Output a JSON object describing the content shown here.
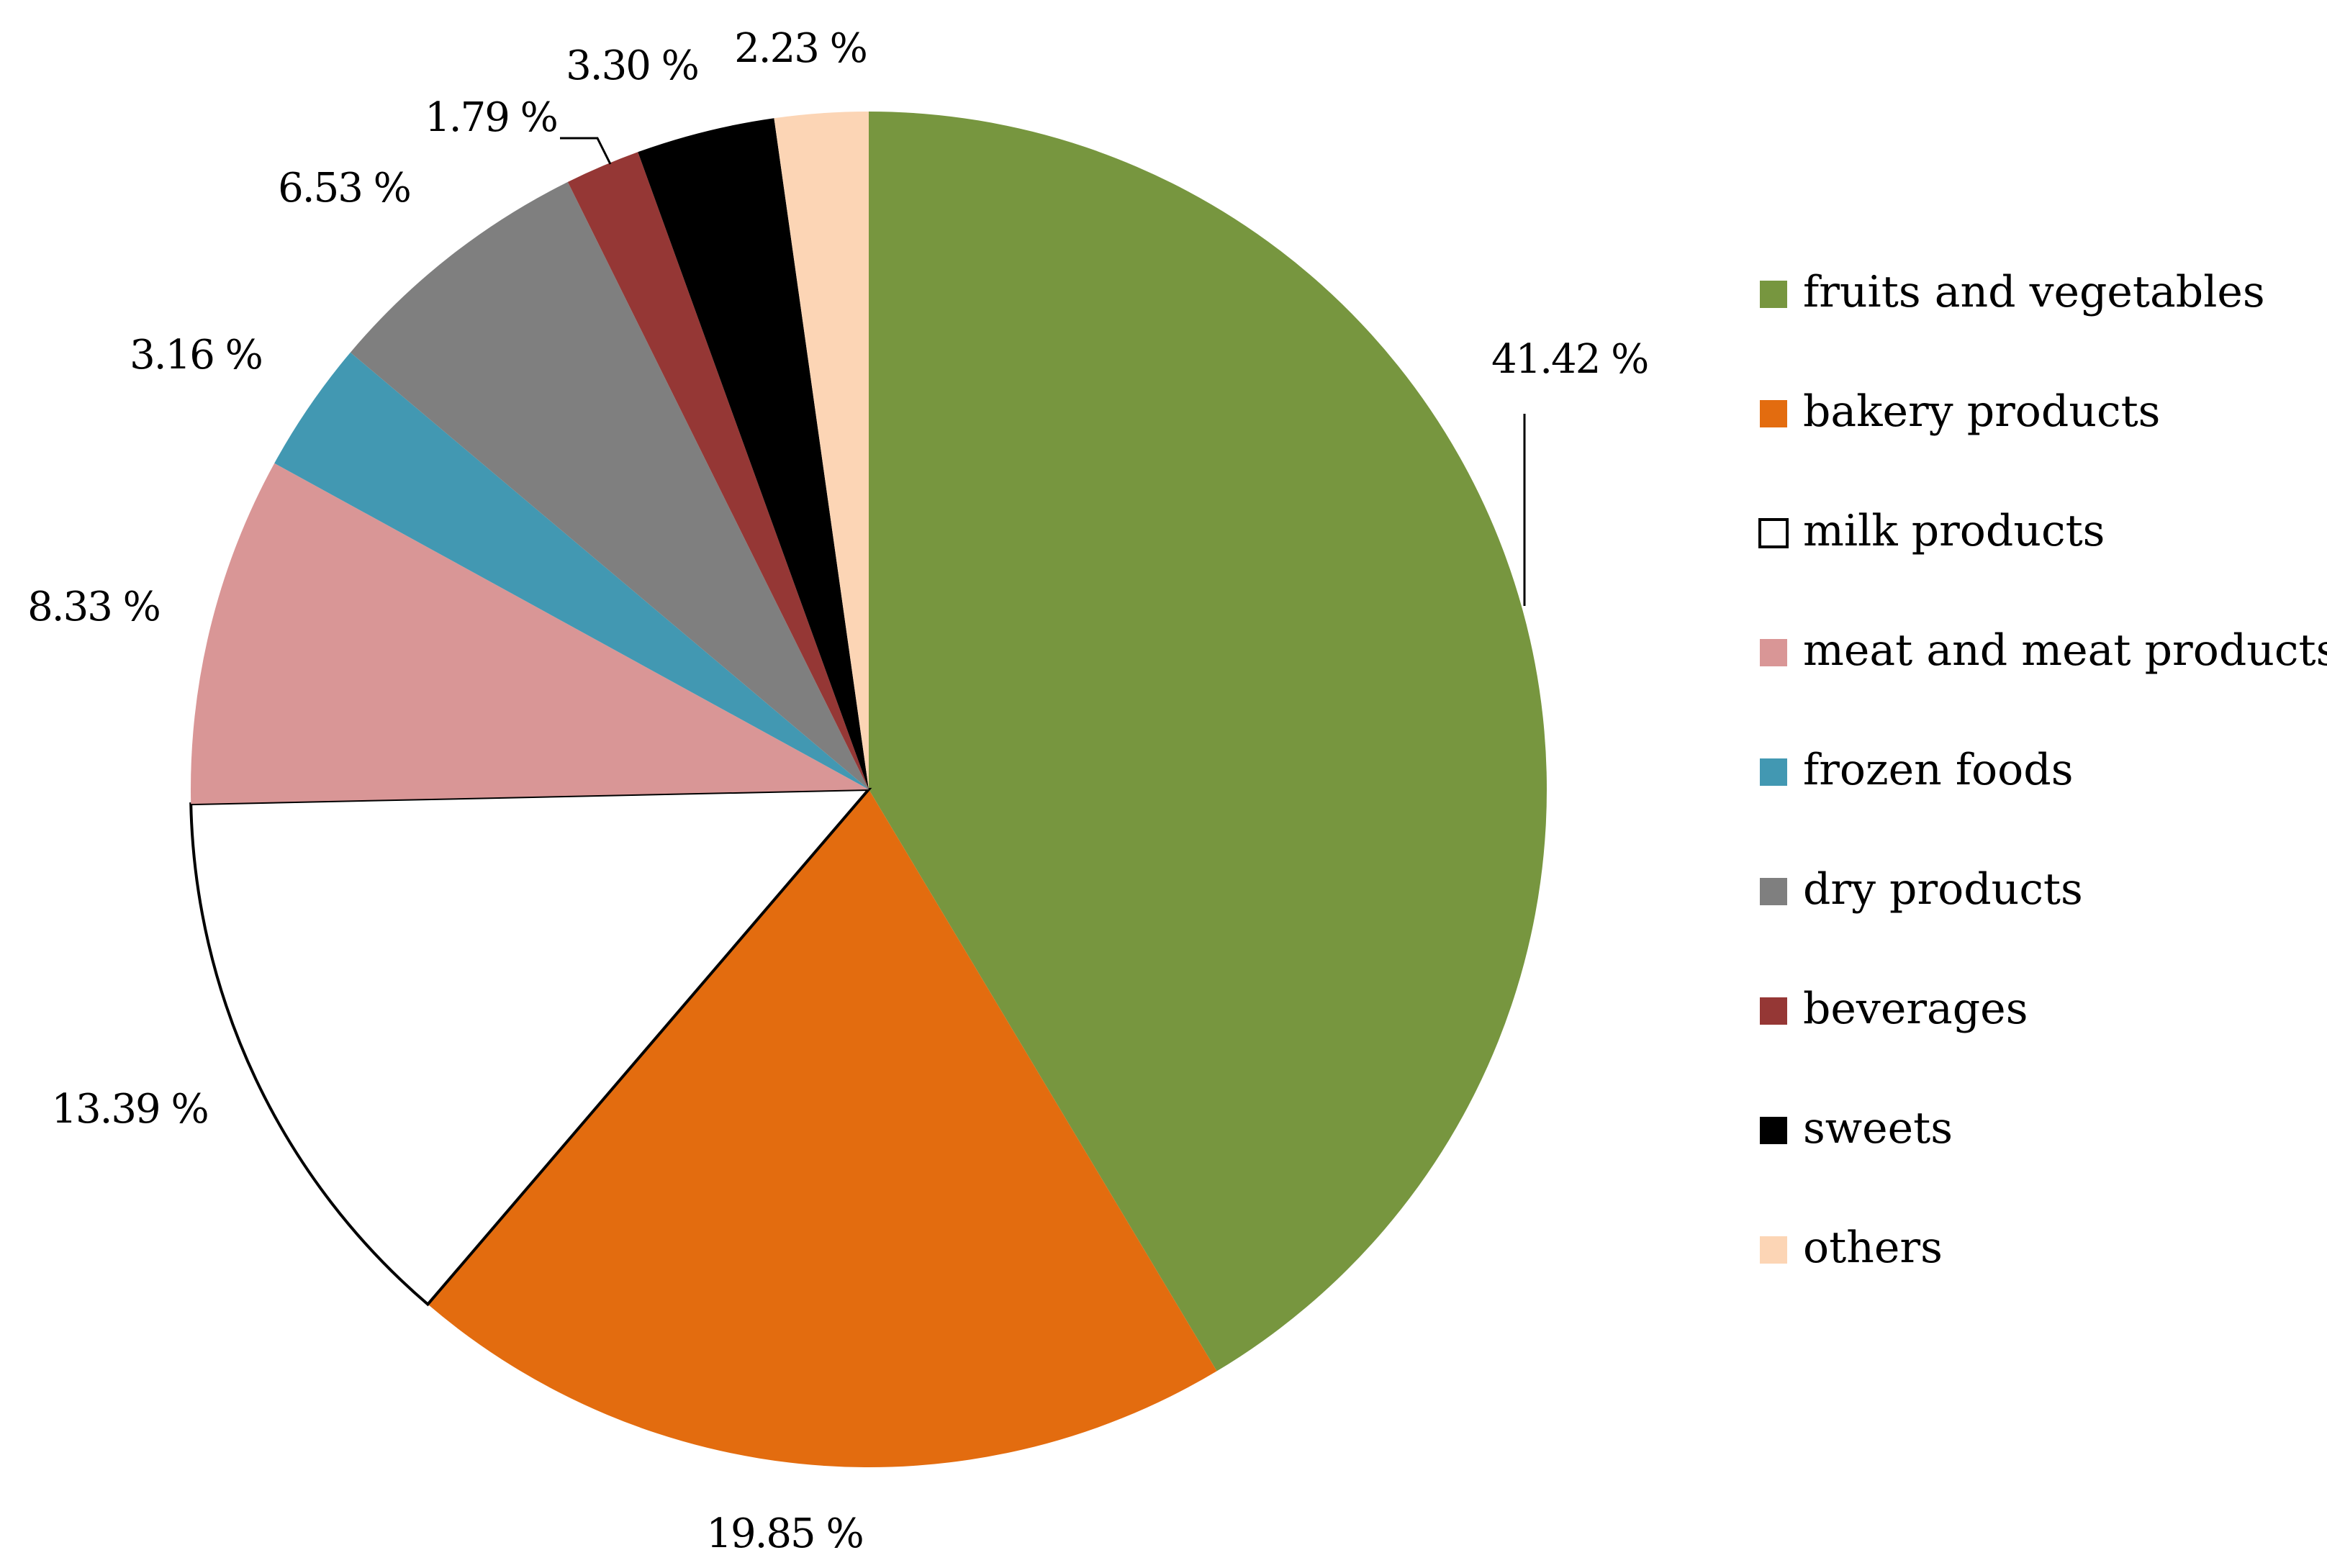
{
  "chart_data": {
    "type": "pie",
    "title": "",
    "start_angle_deg": 0,
    "direction": "clockwise",
    "legend_position": "right",
    "slices": [
      {
        "name": "fruits and vegetables",
        "value": 41.42,
        "label": "41.42 %",
        "color": "#77963f"
      },
      {
        "name": "bakery products",
        "value": 19.85,
        "label": "19.85 %",
        "color": "#e36c0f"
      },
      {
        "name": "milk products",
        "value": 13.39,
        "label": "13.39 %",
        "color": "#ffffff"
      },
      {
        "name": "meat and meat products",
        "value": 8.33,
        "label": "8.33 %",
        "color": "#d99696"
      },
      {
        "name": "frozen foods",
        "value": 3.16,
        "label": "3.16 %",
        "color": "#4298b2"
      },
      {
        "name": "dry products",
        "value": 6.53,
        "label": "6.53 %",
        "color": "#7f7f7f"
      },
      {
        "name": "beverages",
        "value": 1.79,
        "label": "1.79 %",
        "color": "#953735"
      },
      {
        "name": "sweets",
        "value": 3.3,
        "label": "3.30 %",
        "color": "#000000"
      },
      {
        "name": "others",
        "value": 2.23,
        "label": "2.23 %",
        "color": "#fcd5b5"
      }
    ]
  }
}
